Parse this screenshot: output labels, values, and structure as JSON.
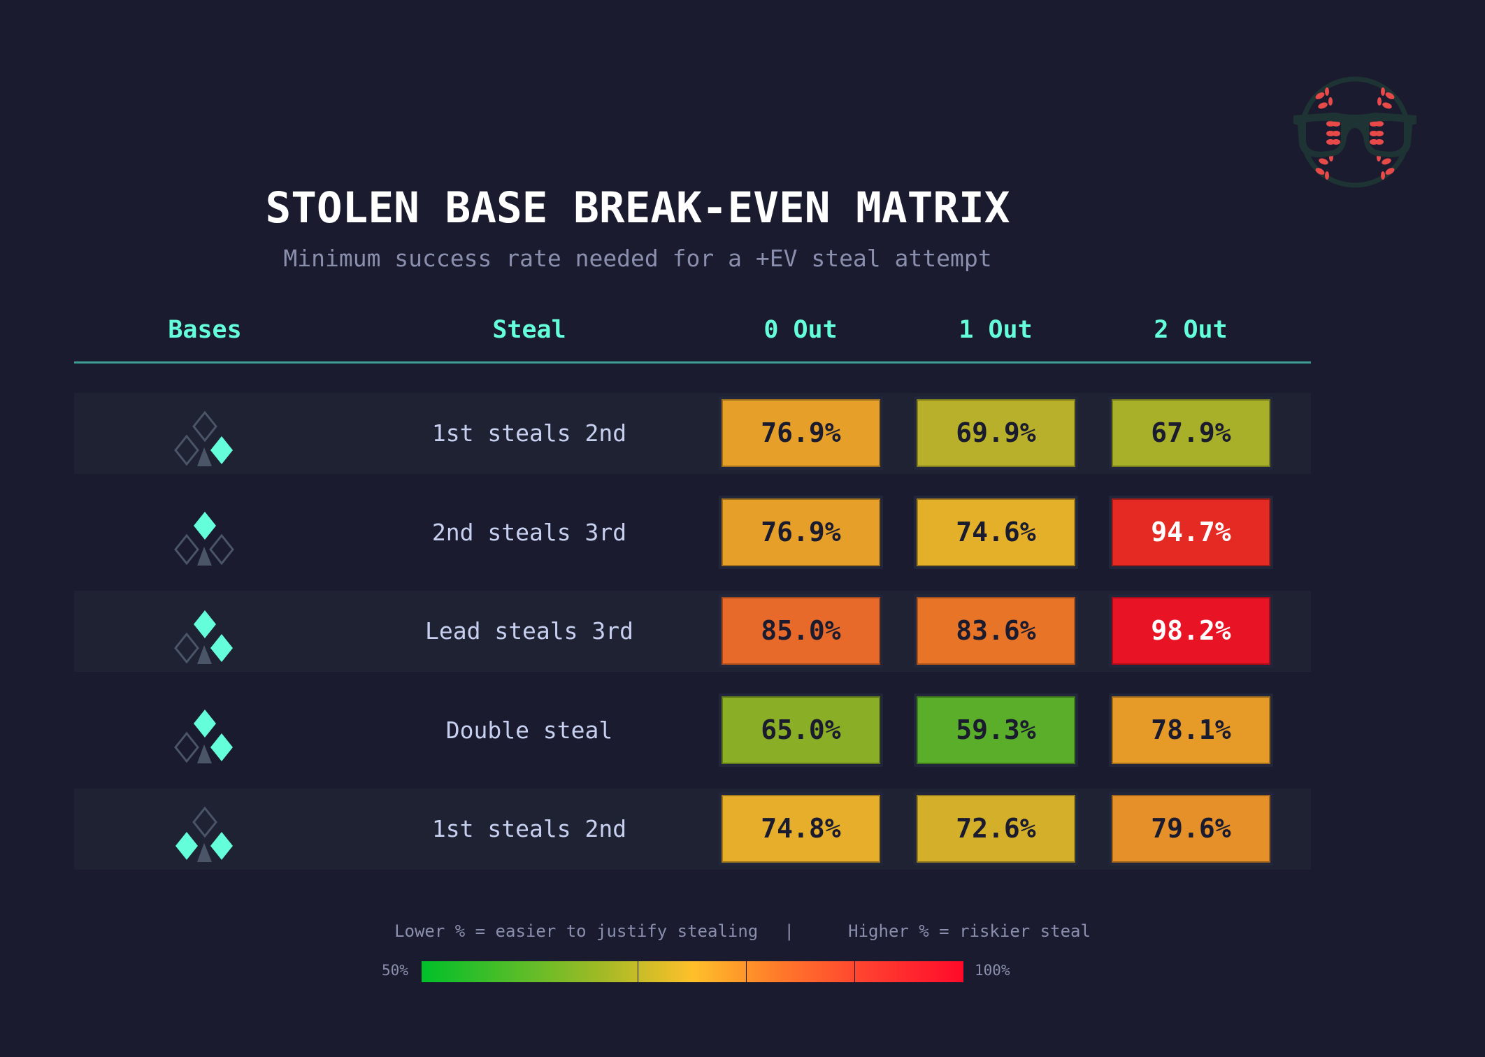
{
  "title": "STOLEN BASE BREAK-EVEN MATRIX",
  "subtitle": "Minimum success rate needed for a +EV steal attempt",
  "headers": {
    "bases": "Bases",
    "steal": "Steal",
    "out0": "0 Out",
    "out1": "1 Out",
    "out2": "2 Out"
  },
  "colors": {
    "background": "#1a1b2e",
    "accent": "#64ffda",
    "empty_base": "#4a5568",
    "logo_stitch": "#e84a4a",
    "logo_frame": "#1e3333"
  },
  "chart_data": {
    "type": "heatmap",
    "title": "STOLEN BASE BREAK-EVEN MATRIX",
    "subtitle": "Minimum success rate needed for a +EV steal attempt",
    "columns": [
      "0 Out",
      "1 Out",
      "2 Out"
    ],
    "color_scale": {
      "min": 50,
      "max": 100,
      "min_label": "50%",
      "max_label": "100%",
      "low_color": "#00c02a",
      "mid_color": "#fec02a",
      "high_color": "#ff0a2a"
    },
    "rows": [
      {
        "bases": {
          "first": true,
          "second": false,
          "third": false
        },
        "steal": "1st steals 2nd",
        "values": [
          76.9,
          69.9,
          67.9
        ],
        "labels": [
          "76.9%",
          "69.9%",
          "67.9%"
        ],
        "colors": [
          "#e6a02a",
          "#b8b02a",
          "#a8b02a"
        ]
      },
      {
        "bases": {
          "first": false,
          "second": true,
          "third": false
        },
        "steal": "2nd steals 3rd",
        "values": [
          76.9,
          74.6,
          94.7
        ],
        "labels": [
          "76.9%",
          "74.6%",
          "94.7%"
        ],
        "colors": [
          "#e6a02a",
          "#e4b02a",
          "#e52a24"
        ]
      },
      {
        "bases": {
          "first": true,
          "second": true,
          "third": false
        },
        "steal": "Lead steals 3rd",
        "values": [
          85.0,
          83.6,
          98.2
        ],
        "labels": [
          "85.0%",
          "83.6%",
          "98.2%"
        ],
        "colors": [
          "#e86a2a",
          "#e87428",
          "#e81426"
        ]
      },
      {
        "bases": {
          "first": true,
          "second": true,
          "third": false
        },
        "steal": "Double steal",
        "values": [
          65.0,
          59.3,
          78.1
        ],
        "labels": [
          "65.0%",
          "59.3%",
          "78.1%"
        ],
        "colors": [
          "#8aae26",
          "#5aae2a",
          "#e69a28"
        ]
      },
      {
        "bases": {
          "first": true,
          "second": false,
          "third": true
        },
        "steal": "1st steals 2nd",
        "values": [
          74.8,
          72.6,
          79.6
        ],
        "labels": [
          "74.8%",
          "72.6%",
          "79.6%"
        ],
        "colors": [
          "#e6ae2a",
          "#d4b02a",
          "#e6902a"
        ]
      }
    ]
  },
  "legend": {
    "low_text": "Lower % = easier to justify stealing",
    "separator": "|",
    "high_text": "Higher % = riskier steal",
    "min_label": "50%",
    "max_label": "100%"
  },
  "logo": {
    "icon": "baseball-with-glasses-logo"
  }
}
